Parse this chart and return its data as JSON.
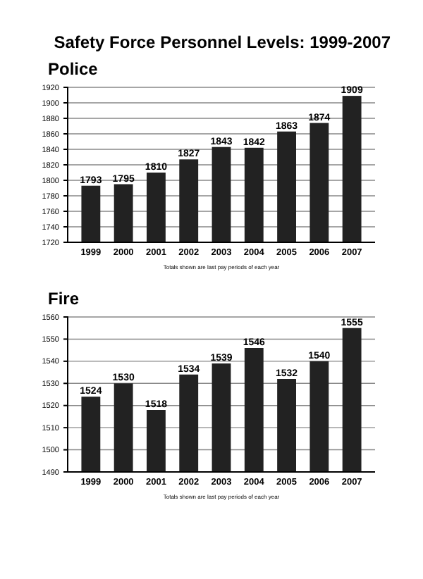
{
  "chart_data": [
    {
      "type": "bar",
      "title": "Safety Force Personnel Levels: 1999-2007",
      "subtitle": "Police",
      "categories": [
        "1999",
        "2000",
        "2001",
        "2002",
        "2003",
        "2004",
        "2005",
        "2006",
        "2007"
      ],
      "values": [
        1793,
        1795,
        1810,
        1827,
        1843,
        1842,
        1863,
        1874,
        1909
      ],
      "color": "#222222",
      "ylim": [
        1720,
        1920
      ],
      "yticks": [
        1720,
        1740,
        1760,
        1780,
        1800,
        1820,
        1840,
        1860,
        1880,
        1900,
        1920
      ],
      "grid": "y",
      "data_labels": true,
      "annotations": [
        "Totals shown are last pay periods of each year"
      ]
    },
    {
      "type": "bar",
      "subtitle": "Fire",
      "categories": [
        "1999",
        "2000",
        "2001",
        "2002",
        "2003",
        "2004",
        "2005",
        "2006",
        "2007"
      ],
      "values": [
        1524,
        1530,
        1518,
        1534,
        1539,
        1546,
        1532,
        1540,
        1555
      ],
      "color": "#222222",
      "ylim": [
        1490,
        1560
      ],
      "yticks": [
        1490,
        1500,
        1510,
        1520,
        1530,
        1540,
        1550,
        1560
      ],
      "grid": "y",
      "data_labels": true,
      "annotations": [
        "Totals shown are last pay periods of each year"
      ]
    }
  ]
}
